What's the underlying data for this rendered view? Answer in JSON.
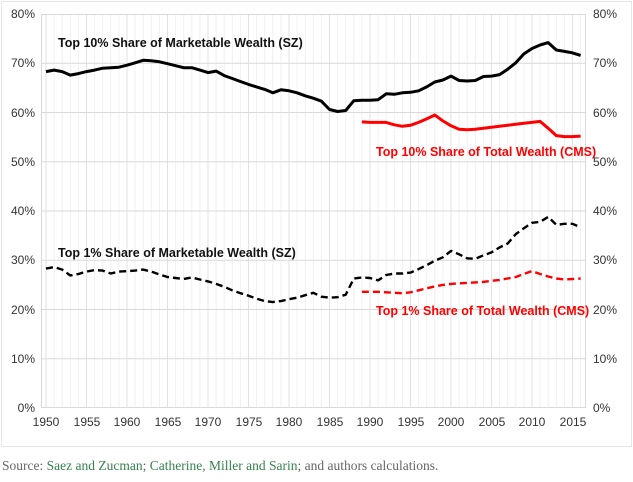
{
  "chart_data": {
    "type": "line",
    "title": "",
    "x_axis": {
      "tick_labels": [
        "1950",
        "1955",
        "1960",
        "1965",
        "1970",
        "1975",
        "1980",
        "1985",
        "1990",
        "1995",
        "2000",
        "2005",
        "2010",
        "2015"
      ],
      "tick_years": [
        1950,
        1955,
        1960,
        1965,
        1970,
        1975,
        1980,
        1985,
        1990,
        1995,
        2000,
        2005,
        2010,
        2015
      ],
      "range": [
        1949.4,
        2017
      ]
    },
    "y_axis": {
      "tick_labels": [
        "80%",
        "70%",
        "60%",
        "50%",
        "40%",
        "30%",
        "20%",
        "10%",
        "0%"
      ],
      "tick_values": [
        80,
        70,
        60,
        50,
        40,
        30,
        20,
        10,
        0
      ],
      "range": [
        0,
        80
      ],
      "shown_on": "both sides"
    },
    "grid": {
      "horizontal_every": 10,
      "vertical_minor_every_years": 1,
      "vertical_major_every_years": 5
    },
    "series": [
      {
        "name": "Top 10% Share of Marketable Wealth (SZ)",
        "color": "#000000",
        "style": "solid",
        "start_year": 1950,
        "values": [
          68.3,
          68.6,
          68.3,
          67.6,
          67.9,
          68.3,
          68.6,
          69.0,
          69.1,
          69.2,
          69.6,
          70.1,
          70.6,
          70.5,
          70.3,
          69.9,
          69.5,
          69.1,
          69.1,
          68.6,
          68.1,
          68.4,
          67.5,
          66.9,
          66.3,
          65.7,
          65.2,
          64.7,
          64.0,
          64.6,
          64.4,
          64.0,
          63.4,
          62.9,
          62.3,
          60.6,
          60.2,
          60.4,
          62.4,
          62.5,
          62.5,
          62.6,
          63.8,
          63.7,
          64.0,
          64.1,
          64.4,
          65.2,
          66.2,
          66.6,
          67.4,
          66.5,
          66.4,
          66.5,
          67.3,
          67.4,
          67.7,
          68.8,
          70.1,
          71.9,
          73.0,
          73.7,
          74.2,
          72.7,
          72.4,
          72.1,
          71.6
        ]
      },
      {
        "name": "Top 10% Share of Total Wealth (CMS)",
        "color": "#ff0000",
        "style": "solid",
        "start_year": 1989,
        "values": [
          58.1,
          58.0,
          58.0,
          58.0,
          57.5,
          57.2,
          57.4,
          58.0,
          58.7,
          59.5,
          58.3,
          57.3,
          56.6,
          56.5,
          56.6,
          56.8,
          57.0,
          57.2,
          57.4,
          57.6,
          57.8,
          58.0,
          58.2,
          56.8,
          55.3,
          55.1,
          55.1,
          55.2
        ]
      },
      {
        "name": "Top 1% Share of Marketable Wealth (SZ)",
        "color": "#000000",
        "style": "dashed",
        "start_year": 1950,
        "values": [
          28.3,
          28.6,
          28.1,
          26.9,
          27.2,
          27.7,
          28.0,
          27.9,
          27.3,
          27.7,
          27.8,
          27.9,
          28.1,
          27.7,
          27.1,
          26.6,
          26.4,
          26.2,
          26.5,
          26.1,
          25.7,
          25.2,
          24.6,
          23.9,
          23.3,
          22.8,
          22.2,
          21.7,
          21.5,
          21.7,
          22.1,
          22.4,
          22.9,
          23.4,
          22.6,
          22.4,
          22.5,
          23.0,
          26.3,
          26.5,
          26.4,
          25.9,
          27.0,
          27.3,
          27.3,
          27.5,
          28.2,
          29.0,
          29.9,
          30.6,
          31.9,
          31.2,
          30.4,
          30.3,
          31.0,
          31.6,
          32.6,
          33.4,
          35.3,
          36.5,
          37.6,
          37.8,
          38.8,
          37.2,
          37.4,
          37.4,
          36.7
        ]
      },
      {
        "name": "Top 1% Share of Total Wealth (CMS)",
        "color": "#ff0000",
        "style": "dashed",
        "start_year": 1989,
        "values": [
          23.6,
          23.6,
          23.6,
          23.5,
          23.4,
          23.3,
          23.5,
          23.9,
          24.3,
          24.7,
          25.0,
          25.2,
          25.3,
          25.4,
          25.5,
          25.6,
          25.8,
          26.0,
          26.3,
          26.6,
          27.2,
          27.8,
          27.2,
          26.7,
          26.3,
          26.1,
          26.2,
          26.3
        ]
      }
    ],
    "annotation_colors": {
      "black_series_label": "#111111",
      "red_series_label": "#ff0000"
    }
  },
  "source": {
    "prefix": "Source: ",
    "link1": "Saez and Zucman",
    "sep1": "; ",
    "link2": "Catherine, Miller and Sarin",
    "suffix": "; and authors calculations.",
    "link_color": "#35824e"
  }
}
